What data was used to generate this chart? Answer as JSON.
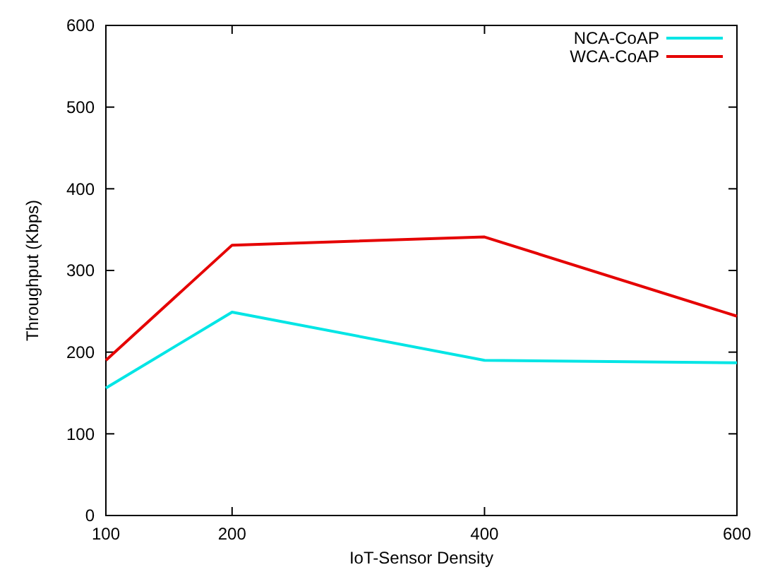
{
  "chart_data": {
    "type": "line",
    "xlabel": "IoT-Sensor Density",
    "ylabel": "Throughput (Kbps)",
    "x": [
      100,
      200,
      400,
      600
    ],
    "series": [
      {
        "name": "NCA-CoAP",
        "color": "#00e5e5",
        "values": [
          156,
          249,
          190,
          187
        ]
      },
      {
        "name": "WCA-CoAP",
        "color": "#e50000",
        "values": [
          190,
          331,
          341,
          244
        ]
      }
    ],
    "xlim": [
      100,
      600
    ],
    "xticks": [
      100,
      200,
      400,
      600
    ],
    "ylim": [
      0,
      600
    ],
    "yticks": [
      0,
      100,
      200,
      300,
      400,
      500,
      600
    ],
    "legend": "top right",
    "grid": false,
    "marker": "none",
    "line_style": "solid"
  }
}
